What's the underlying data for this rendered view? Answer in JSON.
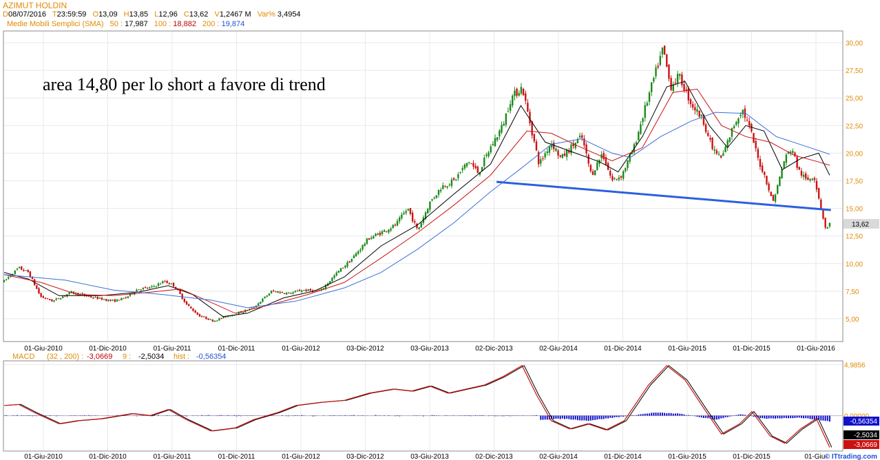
{
  "header": {
    "symbol": "AZIMUT HOLDIN",
    "d_key": "D",
    "date": "08/07/2016",
    "t_key": "T",
    "time": "23:59:59",
    "o_key": "O",
    "open": "13,09",
    "h_key": "H",
    "high": "13,85",
    "l_key": "L",
    "low": "12,96",
    "c_key": "C",
    "close": "13,62",
    "v_key": "V",
    "volume": "1,2467 M",
    "var_key": "Var%",
    "var": "3,4954",
    "sma_label": "Medie Mobili Semplici (SMA)",
    "sma50_key": "50 :",
    "sma50": "17,987",
    "sma100_key": "100 :",
    "sma100": "18,882",
    "sma200_key": "200 :",
    "sma200": "19,874"
  },
  "macd_header": {
    "label": "MACD",
    "params": "(32 , 200) :",
    "macd": "-3,0669",
    "signal_key": "9 :",
    "signal": "-2,5034",
    "hist_key": "hist :",
    "hist": "-0,56354"
  },
  "colors": {
    "up": "#1a8a1a",
    "down": "#cc1111",
    "sma50": "#000000",
    "sma100": "#cc1111",
    "sma200": "#3a6fd8",
    "trendline": "#2b5fe0",
    "hist": "#1111cc",
    "macd": "#cc1111",
    "grid": "#e8e8e8"
  },
  "chart_data": [
    {
      "type": "candlestick",
      "title": "",
      "annotation": "area 14,80 per lo short a favore di trend",
      "x_tick_labels": [
        "01-Giu-2010",
        "01-Dic-2010",
        "01-Giu-2011",
        "01-Dic-2011",
        "01-Giu-2012",
        "03-Dic-2012",
        "03-Giu-2013",
        "02-Dic-2013",
        "02-Giu-2014",
        "01-Dic-2014",
        "01-Giu-2015",
        "01-Dic-2015",
        "01-Giu-2016"
      ],
      "y_tick_labels": [
        "30,00",
        "27,50",
        "25,00",
        "22,50",
        "20,00",
        "17,50",
        "15,00",
        "12,50",
        "10,00",
        "7,50",
        "5,00"
      ],
      "y_ticks": [
        30,
        27.5,
        25,
        22.5,
        20,
        17.5,
        15,
        12.5,
        10,
        7.5,
        5
      ],
      "ylim": [
        3.0,
        31.0
      ],
      "last_value_label": "13,62",
      "x_range": [
        2010.0,
        2016.53
      ],
      "price_path": [
        [
          2010.0,
          8.4
        ],
        [
          2010.12,
          9.6
        ],
        [
          2010.2,
          9.2
        ],
        [
          2010.3,
          7.0
        ],
        [
          2010.4,
          6.6
        ],
        [
          2010.55,
          7.4
        ],
        [
          2010.7,
          7.0
        ],
        [
          2010.9,
          6.6
        ],
        [
          2011.0,
          6.9
        ],
        [
          2011.1,
          7.7
        ],
        [
          2011.2,
          7.8
        ],
        [
          2011.32,
          8.4
        ],
        [
          2011.4,
          8.0
        ],
        [
          2011.5,
          6.3
        ],
        [
          2011.6,
          5.3
        ],
        [
          2011.72,
          4.8
        ],
        [
          2011.85,
          5.3
        ],
        [
          2011.95,
          5.6
        ],
        [
          2012.05,
          6.0
        ],
        [
          2012.2,
          7.5
        ],
        [
          2012.35,
          7.3
        ],
        [
          2012.45,
          7.6
        ],
        [
          2012.6,
          7.5
        ],
        [
          2012.75,
          9.3
        ],
        [
          2012.85,
          10.3
        ],
        [
          2013.0,
          12.3
        ],
        [
          2013.1,
          12.8
        ],
        [
          2013.22,
          13.5
        ],
        [
          2013.32,
          15.0
        ],
        [
          2013.4,
          13.0
        ],
        [
          2013.5,
          15.5
        ],
        [
          2013.6,
          17.0
        ],
        [
          2013.7,
          17.5
        ],
        [
          2013.82,
          19.3
        ],
        [
          2013.9,
          18.2
        ],
        [
          2014.0,
          20.5
        ],
        [
          2014.1,
          22.5
        ],
        [
          2014.17,
          25.0
        ],
        [
          2014.26,
          26.0
        ],
        [
          2014.33,
          22.5
        ],
        [
          2014.4,
          19.0
        ],
        [
          2014.5,
          21.0
        ],
        [
          2014.58,
          19.5
        ],
        [
          2014.66,
          20.5
        ],
        [
          2014.75,
          21.5
        ],
        [
          2014.83,
          18.0
        ],
        [
          2014.92,
          20.0
        ],
        [
          2015.0,
          17.5
        ],
        [
          2015.08,
          18.0
        ],
        [
          2015.18,
          20.5
        ],
        [
          2015.27,
          24.0
        ],
        [
          2015.35,
          27.0
        ],
        [
          2015.42,
          29.5
        ],
        [
          2015.48,
          26.0
        ],
        [
          2015.55,
          27.0
        ],
        [
          2015.65,
          24.5
        ],
        [
          2015.75,
          23.0
        ],
        [
          2015.82,
          20.5
        ],
        [
          2015.9,
          19.5
        ],
        [
          2016.0,
          22.5
        ],
        [
          2016.07,
          24.0
        ],
        [
          2016.14,
          22.0
        ],
        [
          2016.2,
          19.5
        ],
        [
          2016.27,
          17.5
        ],
        [
          2016.32,
          15.5
        ],
        [
          2016.36,
          17.0
        ],
        [
          2016.42,
          19.5
        ],
        [
          2016.48,
          20.5
        ],
        [
          2016.53,
          18.5
        ],
        [
          2016.6,
          17.5
        ],
        [
          2016.66,
          18.0
        ],
        [
          2016.72,
          15.0
        ],
        [
          2016.76,
          13.0
        ],
        [
          2016.79,
          13.6
        ]
      ],
      "series": [
        {
          "name": "50",
          "color": "#000000",
          "points": [
            [
              2010.0,
              9.2
            ],
            [
              2010.2,
              8.6
            ],
            [
              2010.45,
              7.1
            ],
            [
              2010.8,
              7.1
            ],
            [
              2011.1,
              7.4
            ],
            [
              2011.35,
              8.0
            ],
            [
              2011.55,
              7.2
            ],
            [
              2011.8,
              5.2
            ],
            [
              2012.0,
              5.5
            ],
            [
              2012.3,
              6.9
            ],
            [
              2012.55,
              7.5
            ],
            [
              2012.8,
              8.8
            ],
            [
              2013.1,
              11.6
            ],
            [
              2013.4,
              13.5
            ],
            [
              2013.7,
              16.3
            ],
            [
              2014.0,
              19.0
            ],
            [
              2014.25,
              24.3
            ],
            [
              2014.45,
              21.0
            ],
            [
              2014.7,
              20.0
            ],
            [
              2014.9,
              19.2
            ],
            [
              2015.05,
              18.3
            ],
            [
              2015.25,
              21.5
            ],
            [
              2015.45,
              26.0
            ],
            [
              2015.6,
              26.5
            ],
            [
              2015.8,
              22.5
            ],
            [
              2015.95,
              20.5
            ],
            [
              2016.1,
              22.5
            ],
            [
              2016.25,
              22.0
            ],
            [
              2016.4,
              18.5
            ],
            [
              2016.55,
              19.5
            ],
            [
              2016.7,
              20.0
            ],
            [
              2016.79,
              18.0
            ]
          ]
        },
        {
          "name": "100",
          "color": "#cc1111",
          "points": [
            [
              2010.0,
              9.0
            ],
            [
              2010.3,
              8.3
            ],
            [
              2010.6,
              7.2
            ],
            [
              2010.9,
              7.1
            ],
            [
              2011.2,
              7.4
            ],
            [
              2011.45,
              7.7
            ],
            [
              2011.7,
              6.5
            ],
            [
              2011.9,
              5.5
            ],
            [
              2012.2,
              6.3
            ],
            [
              2012.5,
              7.2
            ],
            [
              2012.8,
              8.3
            ],
            [
              2013.1,
              10.5
            ],
            [
              2013.4,
              12.8
            ],
            [
              2013.7,
              15.3
            ],
            [
              2014.0,
              18.0
            ],
            [
              2014.3,
              22.0
            ],
            [
              2014.5,
              21.8
            ],
            [
              2014.75,
              20.5
            ],
            [
              2015.0,
              19.3
            ],
            [
              2015.25,
              20.5
            ],
            [
              2015.5,
              25.5
            ],
            [
              2015.7,
              25.8
            ],
            [
              2015.9,
              22.5
            ],
            [
              2016.1,
              21.5
            ],
            [
              2016.3,
              21.0
            ],
            [
              2016.5,
              19.8
            ],
            [
              2016.7,
              19.2
            ],
            [
              2016.79,
              18.9
            ]
          ]
        },
        {
          "name": "200",
          "color": "#3a6fd8",
          "points": [
            [
              2010.0,
              9.0
            ],
            [
              2010.5,
              8.5
            ],
            [
              2010.9,
              7.6
            ],
            [
              2011.3,
              7.2
            ],
            [
              2011.7,
              6.7
            ],
            [
              2012.0,
              6.0
            ],
            [
              2012.4,
              6.6
            ],
            [
              2012.8,
              7.8
            ],
            [
              2013.1,
              9.2
            ],
            [
              2013.4,
              11.3
            ],
            [
              2013.7,
              13.7
            ],
            [
              2014.0,
              16.5
            ],
            [
              2014.25,
              18.6
            ],
            [
              2014.5,
              20.8
            ],
            [
              2014.75,
              21.3
            ],
            [
              2015.0,
              20.0
            ],
            [
              2015.15,
              19.6
            ],
            [
              2015.4,
              21.5
            ],
            [
              2015.65,
              22.9
            ],
            [
              2015.85,
              23.7
            ],
            [
              2016.1,
              23.6
            ],
            [
              2016.35,
              21.5
            ],
            [
              2016.6,
              20.6
            ],
            [
              2016.79,
              19.9
            ]
          ]
        }
      ],
      "trendline": [
        [
          2014.05,
          17.4
        ],
        [
          2016.8,
          14.85
        ]
      ]
    },
    {
      "type": "line",
      "title": "",
      "y_tick_labels": [
        "4,9856",
        "0,00000"
      ],
      "ylim": [
        -3.4,
        5.3
      ],
      "last_value_labels": [
        "-0,56354",
        "-2,5034",
        "-3,0669"
      ],
      "x_tick_labels": [
        "01-Giu-2010",
        "01-Dic-2010",
        "01-Giu-2011",
        "01-Dic-2011",
        "01-Giu-2012",
        "03-Dic-2012",
        "03-Giu-2013",
        "02-Dic-2013",
        "02-Giu-2014",
        "01-Dic-2014",
        "01-Giu-2015",
        "01-Dic-2015",
        "01-Giu-"
      ],
      "watermark": "ITtrading.com",
      "series": [
        {
          "name": "MACD",
          "color": "#cc1111",
          "points": [
            [
              2010.0,
              1.0
            ],
            [
              2010.12,
              1.1
            ],
            [
              2010.25,
              0.3
            ],
            [
              2010.45,
              -0.8
            ],
            [
              2010.6,
              -0.5
            ],
            [
              2010.8,
              -0.3
            ],
            [
              2011.05,
              0.2
            ],
            [
              2011.2,
              0.0
            ],
            [
              2011.35,
              0.6
            ],
            [
              2011.5,
              -0.4
            ],
            [
              2011.7,
              -1.5
            ],
            [
              2011.9,
              -1.2
            ],
            [
              2012.05,
              -0.4
            ],
            [
              2012.25,
              0.3
            ],
            [
              2012.4,
              1.0
            ],
            [
              2012.6,
              1.3
            ],
            [
              2012.8,
              1.5
            ],
            [
              2013.0,
              2.2
            ],
            [
              2013.2,
              2.6
            ],
            [
              2013.35,
              2.4
            ],
            [
              2013.5,
              2.9
            ],
            [
              2013.65,
              2.2
            ],
            [
              2013.8,
              2.6
            ],
            [
              2013.95,
              3.0
            ],
            [
              2014.1,
              3.8
            ],
            [
              2014.26,
              4.9
            ],
            [
              2014.38,
              2.0
            ],
            [
              2014.5,
              -0.5
            ],
            [
              2014.65,
              -1.3
            ],
            [
              2014.8,
              -0.8
            ],
            [
              2014.95,
              -1.4
            ],
            [
              2015.1,
              -0.5
            ],
            [
              2015.3,
              3.0
            ],
            [
              2015.45,
              4.9
            ],
            [
              2015.6,
              3.5
            ],
            [
              2015.75,
              0.8
            ],
            [
              2015.9,
              -1.8
            ],
            [
              2016.05,
              -0.8
            ],
            [
              2016.15,
              0.4
            ],
            [
              2016.3,
              -2.0
            ],
            [
              2016.42,
              -2.7
            ],
            [
              2016.55,
              -1.3
            ],
            [
              2016.68,
              -0.3
            ],
            [
              2016.79,
              -3.1
            ]
          ]
        }
      ],
      "histogram": [
        [
          2014.4,
          -0.4
        ],
        [
          2014.6,
          -0.3
        ],
        [
          2014.8,
          -0.5
        ],
        [
          2015.35,
          0.3
        ],
        [
          2015.55,
          0.2
        ],
        [
          2015.85,
          -0.4
        ],
        [
          2016.05,
          0.15
        ],
        [
          2016.25,
          -0.3
        ],
        [
          2016.55,
          -0.2
        ],
        [
          2016.79,
          -0.56
        ]
      ]
    }
  ]
}
